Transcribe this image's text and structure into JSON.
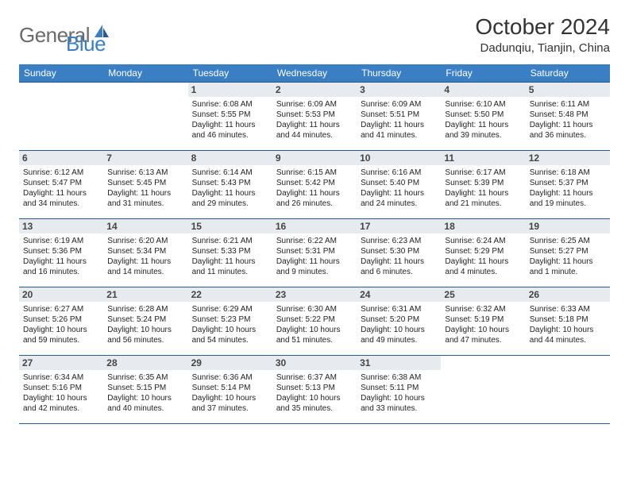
{
  "logo": {
    "general": "General",
    "blue": "Blue"
  },
  "title": "October 2024",
  "location": "Dadunqiu, Tianjin, China",
  "colors": {
    "header_bg": "#3a7fc4",
    "header_text": "#ffffff",
    "daynum_bg": "#e7ebef",
    "border": "#2a5a8a",
    "logo_gray": "#6a6a6a",
    "logo_blue": "#3a7fc4"
  },
  "day_labels": [
    "Sunday",
    "Monday",
    "Tuesday",
    "Wednesday",
    "Thursday",
    "Friday",
    "Saturday"
  ],
  "weeks": [
    [
      null,
      null,
      {
        "n": "1",
        "sr": "Sunrise: 6:08 AM",
        "ss": "Sunset: 5:55 PM",
        "dl": "Daylight: 11 hours and 46 minutes."
      },
      {
        "n": "2",
        "sr": "Sunrise: 6:09 AM",
        "ss": "Sunset: 5:53 PM",
        "dl": "Daylight: 11 hours and 44 minutes."
      },
      {
        "n": "3",
        "sr": "Sunrise: 6:09 AM",
        "ss": "Sunset: 5:51 PM",
        "dl": "Daylight: 11 hours and 41 minutes."
      },
      {
        "n": "4",
        "sr": "Sunrise: 6:10 AM",
        "ss": "Sunset: 5:50 PM",
        "dl": "Daylight: 11 hours and 39 minutes."
      },
      {
        "n": "5",
        "sr": "Sunrise: 6:11 AM",
        "ss": "Sunset: 5:48 PM",
        "dl": "Daylight: 11 hours and 36 minutes."
      }
    ],
    [
      {
        "n": "6",
        "sr": "Sunrise: 6:12 AM",
        "ss": "Sunset: 5:47 PM",
        "dl": "Daylight: 11 hours and 34 minutes."
      },
      {
        "n": "7",
        "sr": "Sunrise: 6:13 AM",
        "ss": "Sunset: 5:45 PM",
        "dl": "Daylight: 11 hours and 31 minutes."
      },
      {
        "n": "8",
        "sr": "Sunrise: 6:14 AM",
        "ss": "Sunset: 5:43 PM",
        "dl": "Daylight: 11 hours and 29 minutes."
      },
      {
        "n": "9",
        "sr": "Sunrise: 6:15 AM",
        "ss": "Sunset: 5:42 PM",
        "dl": "Daylight: 11 hours and 26 minutes."
      },
      {
        "n": "10",
        "sr": "Sunrise: 6:16 AM",
        "ss": "Sunset: 5:40 PM",
        "dl": "Daylight: 11 hours and 24 minutes."
      },
      {
        "n": "11",
        "sr": "Sunrise: 6:17 AM",
        "ss": "Sunset: 5:39 PM",
        "dl": "Daylight: 11 hours and 21 minutes."
      },
      {
        "n": "12",
        "sr": "Sunrise: 6:18 AM",
        "ss": "Sunset: 5:37 PM",
        "dl": "Daylight: 11 hours and 19 minutes."
      }
    ],
    [
      {
        "n": "13",
        "sr": "Sunrise: 6:19 AM",
        "ss": "Sunset: 5:36 PM",
        "dl": "Daylight: 11 hours and 16 minutes."
      },
      {
        "n": "14",
        "sr": "Sunrise: 6:20 AM",
        "ss": "Sunset: 5:34 PM",
        "dl": "Daylight: 11 hours and 14 minutes."
      },
      {
        "n": "15",
        "sr": "Sunrise: 6:21 AM",
        "ss": "Sunset: 5:33 PM",
        "dl": "Daylight: 11 hours and 11 minutes."
      },
      {
        "n": "16",
        "sr": "Sunrise: 6:22 AM",
        "ss": "Sunset: 5:31 PM",
        "dl": "Daylight: 11 hours and 9 minutes."
      },
      {
        "n": "17",
        "sr": "Sunrise: 6:23 AM",
        "ss": "Sunset: 5:30 PM",
        "dl": "Daylight: 11 hours and 6 minutes."
      },
      {
        "n": "18",
        "sr": "Sunrise: 6:24 AM",
        "ss": "Sunset: 5:29 PM",
        "dl": "Daylight: 11 hours and 4 minutes."
      },
      {
        "n": "19",
        "sr": "Sunrise: 6:25 AM",
        "ss": "Sunset: 5:27 PM",
        "dl": "Daylight: 11 hours and 1 minute."
      }
    ],
    [
      {
        "n": "20",
        "sr": "Sunrise: 6:27 AM",
        "ss": "Sunset: 5:26 PM",
        "dl": "Daylight: 10 hours and 59 minutes."
      },
      {
        "n": "21",
        "sr": "Sunrise: 6:28 AM",
        "ss": "Sunset: 5:24 PM",
        "dl": "Daylight: 10 hours and 56 minutes."
      },
      {
        "n": "22",
        "sr": "Sunrise: 6:29 AM",
        "ss": "Sunset: 5:23 PM",
        "dl": "Daylight: 10 hours and 54 minutes."
      },
      {
        "n": "23",
        "sr": "Sunrise: 6:30 AM",
        "ss": "Sunset: 5:22 PM",
        "dl": "Daylight: 10 hours and 51 minutes."
      },
      {
        "n": "24",
        "sr": "Sunrise: 6:31 AM",
        "ss": "Sunset: 5:20 PM",
        "dl": "Daylight: 10 hours and 49 minutes."
      },
      {
        "n": "25",
        "sr": "Sunrise: 6:32 AM",
        "ss": "Sunset: 5:19 PM",
        "dl": "Daylight: 10 hours and 47 minutes."
      },
      {
        "n": "26",
        "sr": "Sunrise: 6:33 AM",
        "ss": "Sunset: 5:18 PM",
        "dl": "Daylight: 10 hours and 44 minutes."
      }
    ],
    [
      {
        "n": "27",
        "sr": "Sunrise: 6:34 AM",
        "ss": "Sunset: 5:16 PM",
        "dl": "Daylight: 10 hours and 42 minutes."
      },
      {
        "n": "28",
        "sr": "Sunrise: 6:35 AM",
        "ss": "Sunset: 5:15 PM",
        "dl": "Daylight: 10 hours and 40 minutes."
      },
      {
        "n": "29",
        "sr": "Sunrise: 6:36 AM",
        "ss": "Sunset: 5:14 PM",
        "dl": "Daylight: 10 hours and 37 minutes."
      },
      {
        "n": "30",
        "sr": "Sunrise: 6:37 AM",
        "ss": "Sunset: 5:13 PM",
        "dl": "Daylight: 10 hours and 35 minutes."
      },
      {
        "n": "31",
        "sr": "Sunrise: 6:38 AM",
        "ss": "Sunset: 5:11 PM",
        "dl": "Daylight: 10 hours and 33 minutes."
      },
      null,
      null
    ]
  ]
}
